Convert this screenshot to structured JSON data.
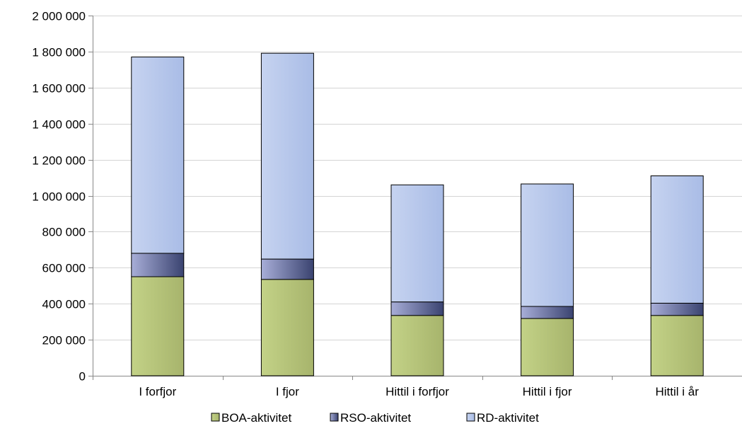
{
  "chart_data": {
    "type": "bar",
    "stacked": true,
    "categories": [
      "I forfjor",
      "I fjor",
      "Hittil i forfjor",
      "Hittil i fjor",
      "Hittil i år"
    ],
    "series": [
      {
        "name": "BOA-aktivitet",
        "color": "#b3c27a",
        "values": [
          550000,
          535000,
          335000,
          318000,
          335000
        ]
      },
      {
        "name": "RSO-aktivitet",
        "color": "#5a6391",
        "values": [
          130000,
          113000,
          75000,
          67000,
          68000
        ]
      },
      {
        "name": "RD-aktivitet",
        "color": "#b9c8ea",
        "values": [
          1090000,
          1143000,
          650000,
          680000,
          707000
        ]
      }
    ],
    "yticks": [
      "0",
      "200 000",
      "400 000",
      "600 000",
      "800 000",
      "1 000 000",
      "1 200 000",
      "1 400 000",
      "1 600 000",
      "1 800 000",
      "2 000 000"
    ],
    "ylim": [
      0,
      2000000
    ],
    "grid": true,
    "legend_position": "bottom"
  }
}
